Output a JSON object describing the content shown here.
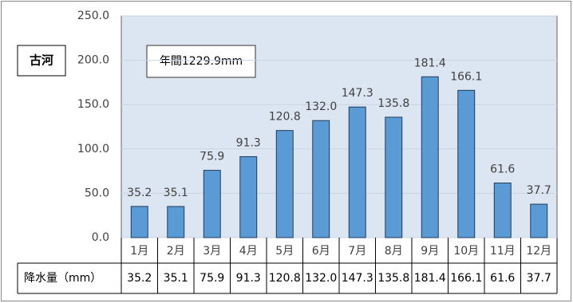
{
  "chart_data": {
    "type": "bar",
    "title": "古河",
    "annotation": "年間1229.9mm",
    "table_row_label": "降水量（mm）",
    "categories": [
      "1月",
      "2月",
      "3月",
      "4月",
      "5月",
      "6月",
      "7月",
      "8月",
      "9月",
      "10月",
      "11月",
      "12月"
    ],
    "values": [
      35.2,
      35.1,
      75.9,
      91.3,
      120.8,
      132.0,
      147.3,
      135.8,
      181.4,
      166.1,
      61.6,
      37.7
    ],
    "value_labels": [
      "35.2",
      "35.1",
      "75.9",
      "91.3",
      "120.8",
      "132.0",
      "147.3",
      "135.8",
      "181.4",
      "166.1",
      "61.6",
      "37.7"
    ],
    "color": "#5b9bd5",
    "ylim": [
      0,
      250
    ],
    "yticks": [
      {
        "value": 0,
        "label": "0.0"
      },
      {
        "value": 50,
        "label": "50.0"
      },
      {
        "value": 100,
        "label": "100.0"
      },
      {
        "value": 150,
        "label": "150.0"
      },
      {
        "value": 200,
        "label": "200.0"
      },
      {
        "value": 250,
        "label": "250.0"
      }
    ],
    "grid": true
  }
}
